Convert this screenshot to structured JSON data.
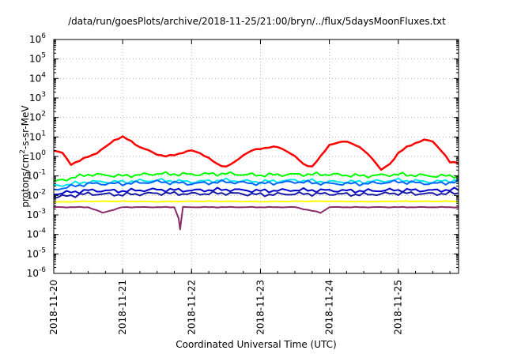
{
  "chart_data": {
    "type": "line",
    "title": "/data/run/goesPlots/archive/2018-11-25/21:00/bryn/../flux/5daysMoonFluxes.txt",
    "xlabel": "Coordinated Universal Time (UTC)",
    "ylabel_parts": [
      "protons/cm",
      "2",
      "-s-sr-MeV"
    ],
    "y_scale": "log",
    "ylim": [
      1e-06,
      1000000.0
    ],
    "y_ticks": [
      {
        "base": "10",
        "exp": "-6",
        "value": 1e-06
      },
      {
        "base": "10",
        "exp": "-5",
        "value": 1e-05
      },
      {
        "base": "10",
        "exp": "-4",
        "value": 0.0001
      },
      {
        "base": "10",
        "exp": "-3",
        "value": 0.001
      },
      {
        "base": "10",
        "exp": "-2",
        "value": 0.01
      },
      {
        "base": "10",
        "exp": "-1",
        "value": 0.1
      },
      {
        "base": "10",
        "exp": "0",
        "value": 1
      },
      {
        "base": "10",
        "exp": "1",
        "value": 10
      },
      {
        "base": "10",
        "exp": "2",
        "value": 100
      },
      {
        "base": "10",
        "exp": "3",
        "value": 1000
      },
      {
        "base": "10",
        "exp": "4",
        "value": 10000
      },
      {
        "base": "10",
        "exp": "5",
        "value": 100000
      },
      {
        "base": "10",
        "exp": "6",
        "value": 1000000
      }
    ],
    "x_start": "2018-11-20",
    "x_end": "2018-11-25 21:00",
    "x_tick_labels": [
      "2018-11-20",
      "2018-11-21",
      "2018-11-22",
      "2018-11-23",
      "2018-11-24",
      "2018-11-25"
    ],
    "grid": true,
    "series": [
      {
        "color": "#ff0000",
        "x": [
          "2018-11-20 00:00",
          "2018-11-20 03:00",
          "2018-11-20 06:00",
          "2018-11-20 09:00",
          "2018-11-20 12:00",
          "2018-11-20 15:00",
          "2018-11-20 18:00",
          "2018-11-20 21:00",
          "2018-11-21 00:00",
          "2018-11-21 03:00",
          "2018-11-21 06:00",
          "2018-11-21 09:00",
          "2018-11-21 12:00",
          "2018-11-21 15:00",
          "2018-11-21 18:00",
          "2018-11-21 21:00",
          "2018-11-22 00:00",
          "2018-11-22 03:00",
          "2018-11-22 06:00",
          "2018-11-22 09:00",
          "2018-11-22 12:00",
          "2018-11-22 15:00",
          "2018-11-22 18:00",
          "2018-11-22 21:00",
          "2018-11-23 00:00",
          "2018-11-23 03:00",
          "2018-11-23 06:00",
          "2018-11-23 09:00",
          "2018-11-23 12:00",
          "2018-11-23 15:00",
          "2018-11-23 18:00",
          "2018-11-23 21:00",
          "2018-11-24 00:00",
          "2018-11-24 03:00",
          "2018-11-24 06:00",
          "2018-11-24 09:00",
          "2018-11-24 12:00",
          "2018-11-24 15:00",
          "2018-11-24 18:00",
          "2018-11-24 21:00",
          "2018-11-25 00:00",
          "2018-11-25 03:00",
          "2018-11-25 06:00",
          "2018-11-25 09:00",
          "2018-11-25 12:00",
          "2018-11-25 15:00",
          "2018-11-25 18:00",
          "2018-11-25 21:00"
        ],
        "values": [
          2,
          1.5,
          0.4,
          0.6,
          1,
          1.5,
          3,
          7,
          10,
          6,
          3,
          2,
          1.3,
          1,
          1.2,
          1.6,
          2,
          1.5,
          0.8,
          0.4,
          0.3,
          0.5,
          1.2,
          2,
          2.5,
          3,
          3,
          2,
          1,
          0.4,
          0.3,
          1,
          4,
          5,
          6,
          4,
          2,
          0.8,
          0.2,
          0.4,
          1.5,
          3,
          5,
          7,
          6,
          2,
          0.5,
          0.5
        ]
      },
      {
        "color": "#00ff00",
        "x": [
          "2018-11-20 00:00",
          "2018-11-20 12:00",
          "2018-11-21 00:00",
          "2018-11-21 12:00",
          "2018-11-22 00:00",
          "2018-11-22 12:00",
          "2018-11-23 00:00",
          "2018-11-23 12:00",
          "2018-11-24 00:00",
          "2018-11-24 12:00",
          "2018-11-25 00:00",
          "2018-11-25 12:00",
          "2018-11-25 21:00"
        ],
        "values": [
          0.05,
          0.12,
          0.1,
          0.13,
          0.12,
          0.13,
          0.11,
          0.12,
          0.12,
          0.1,
          0.12,
          0.1,
          0.1
        ]
      },
      {
        "color": "#00e5e5",
        "x": [
          "2018-11-20 00:00",
          "2018-11-20 12:00",
          "2018-11-21 00:00",
          "2018-11-21 12:00",
          "2018-11-22 00:00",
          "2018-11-22 12:00",
          "2018-11-23 00:00",
          "2018-11-23 12:00",
          "2018-11-24 00:00",
          "2018-11-24 12:00",
          "2018-11-25 00:00",
          "2018-11-25 12:00",
          "2018-11-25 21:00"
        ],
        "values": [
          0.03,
          0.05,
          0.05,
          0.06,
          0.05,
          0.06,
          0.05,
          0.06,
          0.05,
          0.05,
          0.06,
          0.05,
          0.06
        ]
      },
      {
        "color": "#0066ff",
        "x": [
          "2018-11-20 00:00",
          "2018-11-20 12:00",
          "2018-11-21 00:00",
          "2018-11-21 12:00",
          "2018-11-22 00:00",
          "2018-11-22 12:00",
          "2018-11-23 00:00",
          "2018-11-23 12:00",
          "2018-11-24 00:00",
          "2018-11-24 12:00",
          "2018-11-25 00:00",
          "2018-11-25 12:00",
          "2018-11-25 21:00"
        ],
        "values": [
          0.02,
          0.04,
          0.04,
          0.05,
          0.04,
          0.05,
          0.04,
          0.05,
          0.04,
          0.04,
          0.05,
          0.04,
          0.05
        ]
      },
      {
        "color": "#0000cc",
        "x": [
          "2018-11-20 00:00",
          "2018-11-20 12:00",
          "2018-11-21 00:00",
          "2018-11-21 12:00",
          "2018-11-22 00:00",
          "2018-11-22 12:00",
          "2018-11-23 00:00",
          "2018-11-23 12:00",
          "2018-11-24 00:00",
          "2018-11-24 12:00",
          "2018-11-25 00:00",
          "2018-11-25 12:00",
          "2018-11-25 21:00"
        ],
        "values": [
          0.012,
          0.018,
          0.017,
          0.02,
          0.018,
          0.02,
          0.017,
          0.019,
          0.018,
          0.017,
          0.019,
          0.018,
          0.02
        ]
      },
      {
        "color": "#1a1aa0",
        "x": [
          "2018-11-20 00:00",
          "2018-11-20 12:00",
          "2018-11-21 00:00",
          "2018-11-21 12:00",
          "2018-11-22 00:00",
          "2018-11-22 12:00",
          "2018-11-23 00:00",
          "2018-11-23 12:00",
          "2018-11-24 00:00",
          "2018-11-24 12:00",
          "2018-11-25 00:00",
          "2018-11-25 12:00",
          "2018-11-25 21:00"
        ],
        "values": [
          0.008,
          0.012,
          0.011,
          0.013,
          0.012,
          0.013,
          0.011,
          0.012,
          0.012,
          0.011,
          0.013,
          0.012,
          0.013
        ]
      },
      {
        "color": "#ffff00",
        "x": [
          "2018-11-20 00:00",
          "2018-11-20 12:00",
          "2018-11-21 00:00",
          "2018-11-21 12:00",
          "2018-11-22 00:00",
          "2018-11-22 12:00",
          "2018-11-23 00:00",
          "2018-11-23 12:00",
          "2018-11-24 00:00",
          "2018-11-24 12:00",
          "2018-11-25 00:00",
          "2018-11-25 12:00",
          "2018-11-25 21:00"
        ],
        "values": [
          0.0045,
          0.005,
          0.005,
          0.0048,
          0.005,
          0.005,
          0.0048,
          0.005,
          0.005,
          0.0048,
          0.005,
          0.005,
          0.005
        ]
      },
      {
        "color": "#8b2c6a",
        "x": [
          "2018-11-20 00:00",
          "2018-11-20 12:00",
          "2018-11-20 17:00",
          "2018-11-21 00:00",
          "2018-11-21 12:00",
          "2018-11-21 19:00",
          "2018-11-21 20:00",
          "2018-11-21 21:00",
          "2018-11-22 00:00",
          "2018-11-22 12:00",
          "2018-11-23 00:00",
          "2018-11-23 12:00",
          "2018-11-23 21:00",
          "2018-11-24 00:00",
          "2018-11-24 12:00",
          "2018-11-25 00:00",
          "2018-11-25 12:00",
          "2018-11-25 21:00"
        ],
        "values": [
          0.0025,
          0.0025,
          0.0013,
          0.0025,
          0.0025,
          0.0025,
          0.00018,
          0.0025,
          0.0025,
          0.0025,
          0.0025,
          0.0025,
          0.0013,
          0.0025,
          0.0025,
          0.0025,
          0.0025,
          0.0025
        ]
      }
    ]
  }
}
